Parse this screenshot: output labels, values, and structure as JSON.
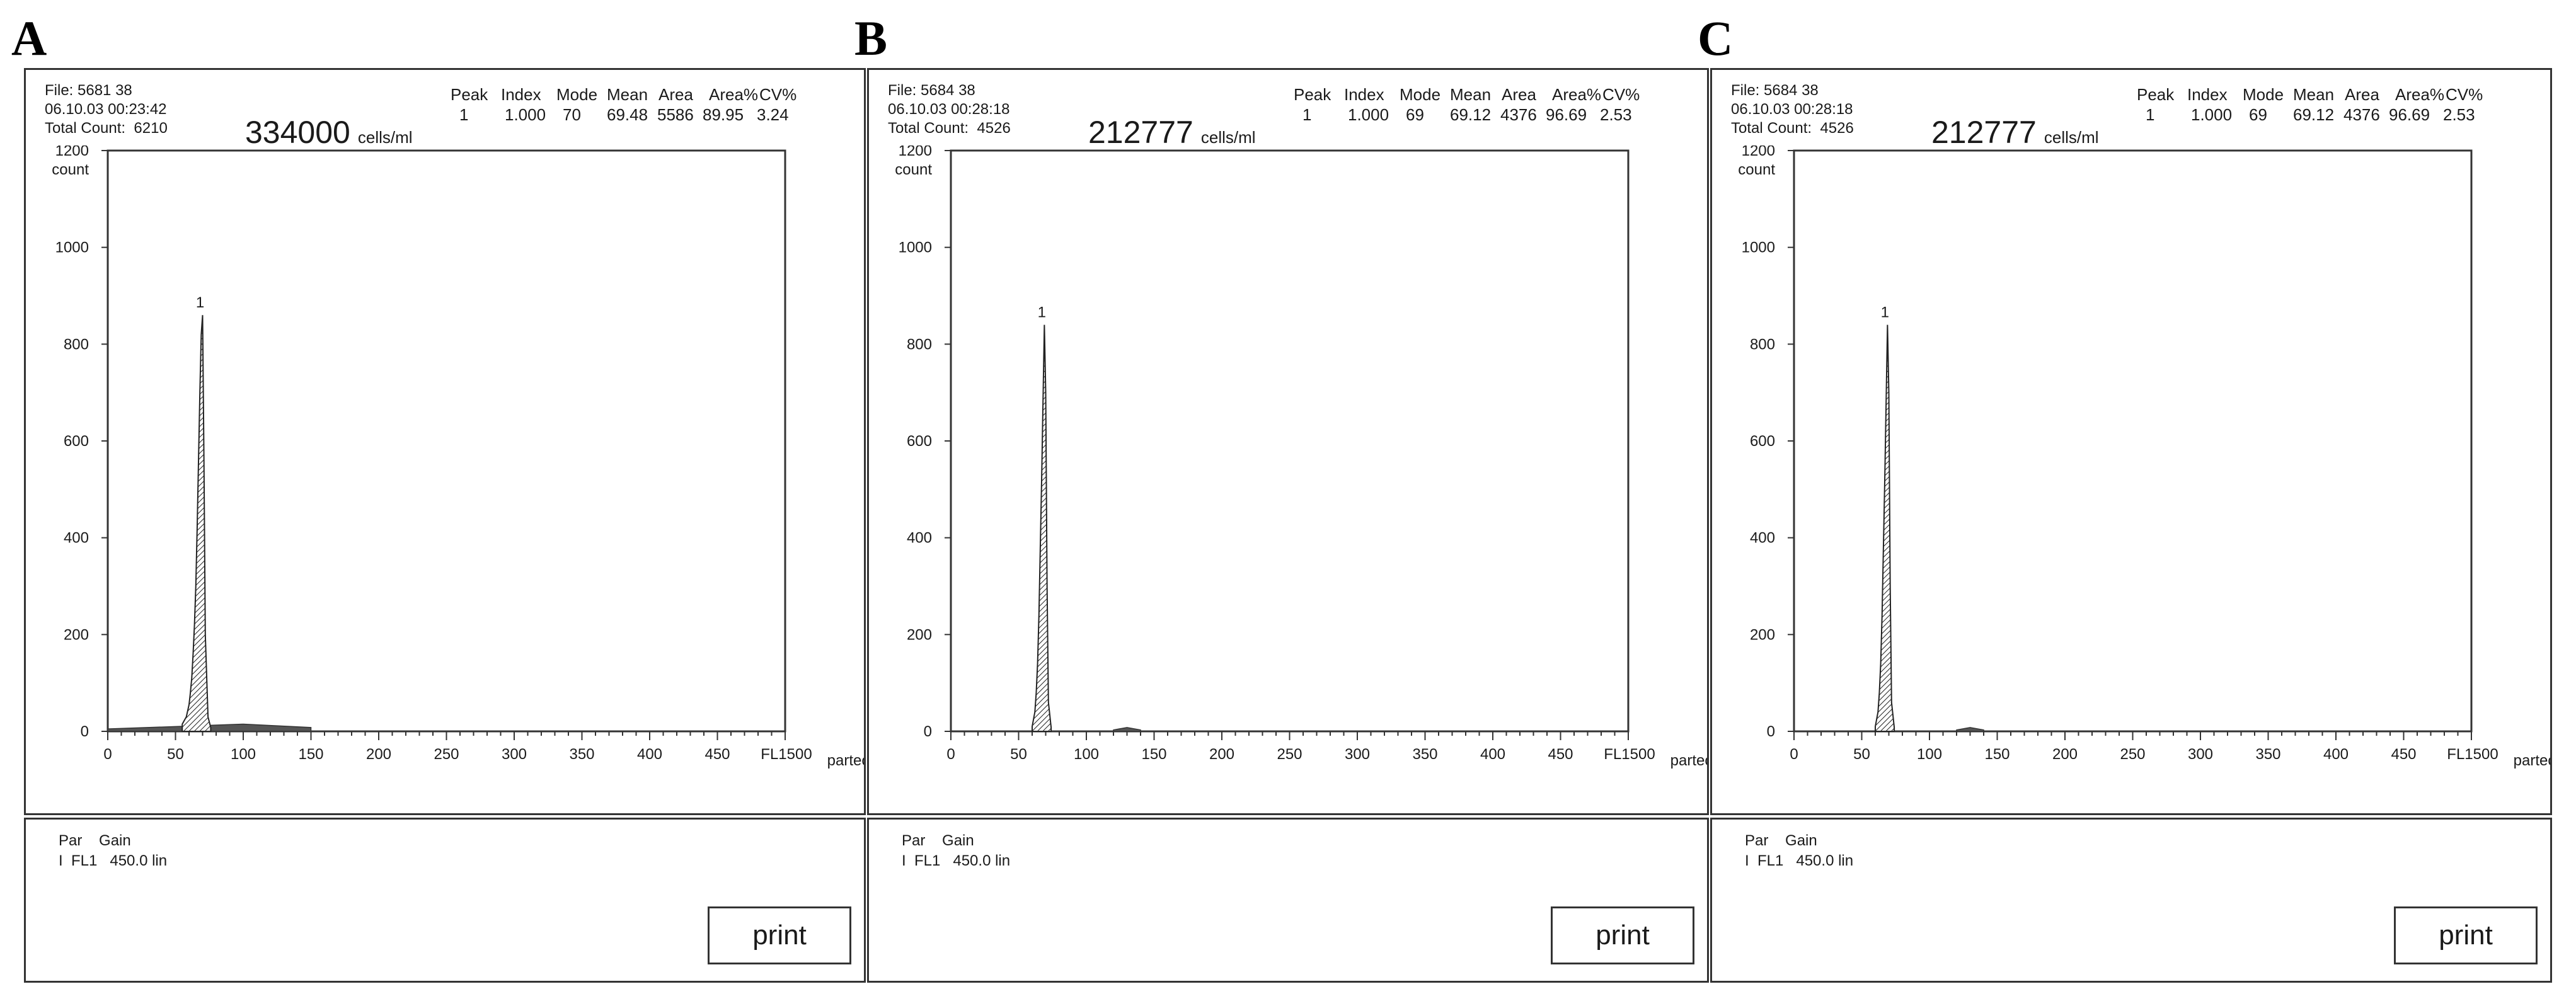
{
  "panels": [
    {
      "letter": "A",
      "file": "File: 5681 38",
      "datetime": "06.10.03  00:23:42",
      "total_count_label": "Total Count:",
      "total_count": "6210",
      "concentration": "334000",
      "conc_unit": "cells/ml",
      "stats_headers": [
        "Peak",
        "Index",
        "Mode",
        "Mean",
        "Area",
        "Area%",
        "CV%"
      ],
      "stats_values": [
        "1",
        "1.000",
        "70",
        "69.48",
        "5586",
        "89.95",
        "3.24"
      ],
      "y_unit": "count",
      "peak_label": "1",
      "x_end_label": "FL1500",
      "brand": "partec",
      "par_text": "Par    Gain\nI  FL1   450.0 lin",
      "print_label": "print"
    },
    {
      "letter": "B",
      "file": "File: 5684 38",
      "datetime": "06.10.03  00:28:18",
      "total_count_label": "Total Count:",
      "total_count": "4526",
      "concentration": "212777",
      "conc_unit": "cells/ml",
      "stats_headers": [
        "Peak",
        "Index",
        "Mode",
        "Mean",
        "Area",
        "Area%",
        "CV%"
      ],
      "stats_values": [
        "1",
        "1.000",
        "69",
        "69.12",
        "4376",
        "96.69",
        "2.53"
      ],
      "y_unit": "count",
      "peak_label": "1",
      "x_end_label": "FL1500",
      "brand": "partec",
      "par_text": "Par    Gain\nI  FL1   450.0 lin",
      "print_label": "print"
    },
    {
      "letter": "C",
      "file": "File: 5684 38",
      "datetime": "06.10.03  00:28:18",
      "total_count_label": "Total Count:",
      "total_count": "4526",
      "concentration": "212777",
      "conc_unit": "cells/ml",
      "stats_headers": [
        "Peak",
        "Index",
        "Mode",
        "Mean",
        "Area",
        "Area%",
        "CV%"
      ],
      "stats_values": [
        "1",
        "1.000",
        "69",
        "69.12",
        "4376",
        "96.69",
        "2.53"
      ],
      "y_unit": "count",
      "peak_label": "1",
      "x_end_label": "FL1500",
      "brand": "partec",
      "par_text": "Par    Gain\nI  FL1   450.0 lin",
      "print_label": "print"
    }
  ],
  "chart_data": [
    {
      "type": "area",
      "panel": "A",
      "x_ticks": [
        0,
        50,
        100,
        150,
        200,
        250,
        300,
        350,
        400,
        450
      ],
      "y_ticks": [
        0,
        200,
        400,
        600,
        800,
        1000,
        1200
      ],
      "xlim": [
        0,
        500
      ],
      "ylim": [
        0,
        1200
      ],
      "x": [
        55,
        58,
        60,
        61,
        62,
        63,
        64,
        65,
        66,
        67,
        68,
        69,
        70,
        71,
        72,
        74,
        76
      ],
      "values": [
        15,
        30,
        55,
        80,
        110,
        160,
        220,
        300,
        420,
        560,
        700,
        820,
        860,
        560,
        200,
        30,
        8
      ],
      "baseline": {
        "x": [
          0,
          50,
          100,
          150
        ],
        "values": [
          5,
          10,
          15,
          8
        ]
      }
    },
    {
      "type": "area",
      "panel": "B",
      "x_ticks": [
        0,
        50,
        100,
        150,
        200,
        250,
        300,
        350,
        400,
        450
      ],
      "y_ticks": [
        0,
        200,
        400,
        600,
        800,
        1000,
        1200
      ],
      "xlim": [
        0,
        500
      ],
      "ylim": [
        0,
        1200
      ],
      "x": [
        60,
        62,
        63,
        64,
        65,
        66,
        67,
        68,
        69,
        70,
        71,
        72,
        74
      ],
      "values": [
        10,
        40,
        80,
        140,
        240,
        380,
        520,
        680,
        840,
        700,
        300,
        60,
        8
      ],
      "baseline": {
        "x": [
          120,
          130,
          140
        ],
        "values": [
          3,
          8,
          3
        ]
      }
    },
    {
      "type": "area",
      "panel": "C",
      "x_ticks": [
        0,
        50,
        100,
        150,
        200,
        250,
        300,
        350,
        400,
        450
      ],
      "y_ticks": [
        0,
        200,
        400,
        600,
        800,
        1000,
        1200
      ],
      "xlim": [
        0,
        500
      ],
      "ylim": [
        0,
        1200
      ],
      "x": [
        60,
        62,
        63,
        64,
        65,
        66,
        67,
        68,
        69,
        70,
        71,
        72,
        74
      ],
      "values": [
        10,
        40,
        80,
        140,
        240,
        380,
        520,
        680,
        840,
        700,
        300,
        60,
        8
      ],
      "baseline": {
        "x": [
          120,
          130,
          140
        ],
        "values": [
          3,
          8,
          3
        ]
      }
    }
  ]
}
